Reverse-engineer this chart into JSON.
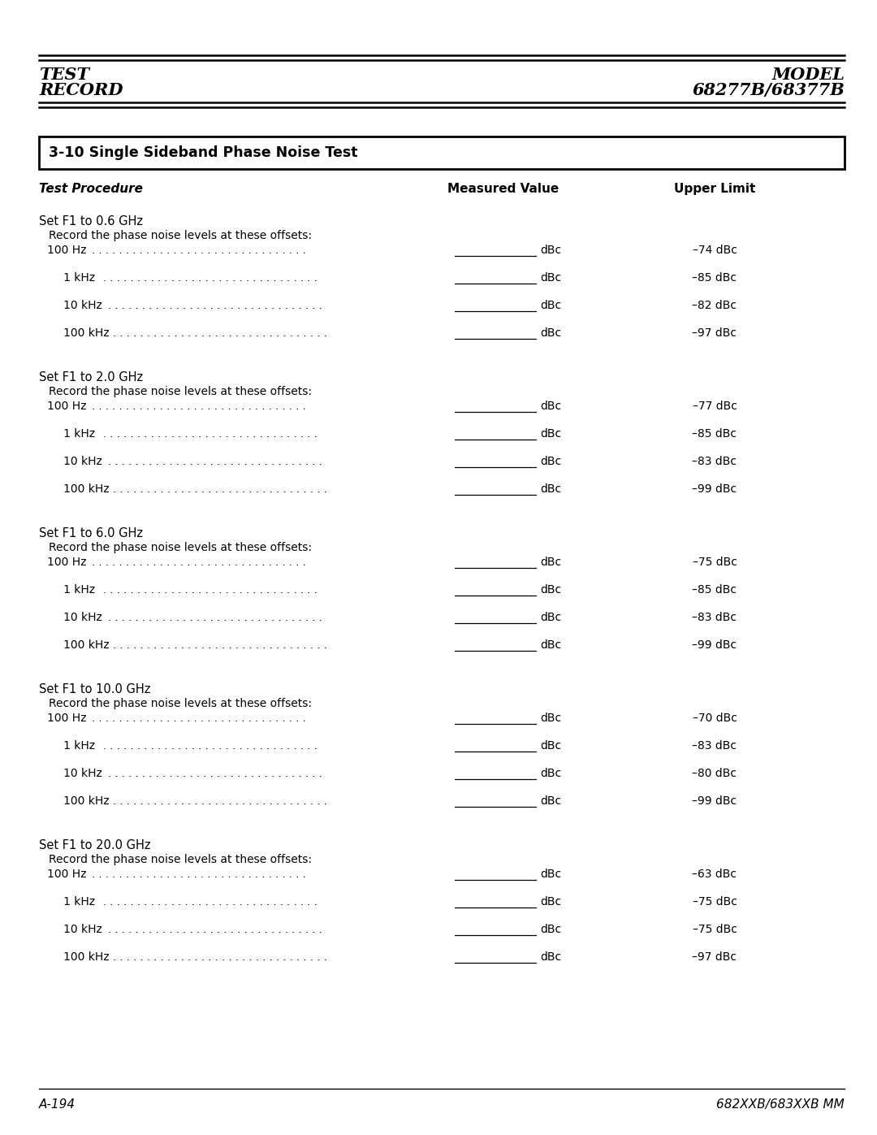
{
  "page_title_left": [
    "TEST",
    "RECORD"
  ],
  "page_title_right": [
    "MODEL",
    "68277B/68377B"
  ],
  "section_title": "3-10 Single Sideband Phase Noise Test",
  "col_headers": [
    "Test Procedure",
    "Measured Value",
    "Upper Limit"
  ],
  "footer_left": "A-194",
  "footer_right": "682XXB/683XXB MM",
  "groups": [
    {
      "set_line": "Set F1 to 0.6 GHz",
      "record_line": "Record the phase noise levels at these offsets:",
      "rows": [
        {
          "label": "100 Hz",
          "indent": 1,
          "upper_limit": "–74 dBc"
        },
        {
          "label": "1 kHz",
          "indent": 2,
          "upper_limit": "–85 dBc"
        },
        {
          "label": "10 kHz",
          "indent": 2,
          "upper_limit": "–82 dBc"
        },
        {
          "label": "100 kHz",
          "indent": 2,
          "upper_limit": "–97 dBc"
        }
      ]
    },
    {
      "set_line": "Set F1 to 2.0 GHz",
      "record_line": "Record the phase noise levels at these offsets:",
      "rows": [
        {
          "label": "100 Hz",
          "indent": 1,
          "upper_limit": "–77 dBc"
        },
        {
          "label": "1 kHz",
          "indent": 2,
          "upper_limit": "–85 dBc"
        },
        {
          "label": "10 kHz",
          "indent": 2,
          "upper_limit": "–83 dBc"
        },
        {
          "label": "100 kHz",
          "indent": 2,
          "upper_limit": "–99 dBc"
        }
      ]
    },
    {
      "set_line": "Set F1 to 6.0 GHz",
      "record_line": "Record the phase noise levels at these offsets:",
      "rows": [
        {
          "label": "100 Hz",
          "indent": 1,
          "upper_limit": "–75 dBc"
        },
        {
          "label": "1 kHz",
          "indent": 2,
          "upper_limit": "–85 dBc"
        },
        {
          "label": "10 kHz",
          "indent": 2,
          "upper_limit": "–83 dBc"
        },
        {
          "label": "100 kHz",
          "indent": 2,
          "upper_limit": "–99 dBc"
        }
      ]
    },
    {
      "set_line": "Set F1 to 10.0 GHz",
      "record_line": "Record the phase noise levels at these offsets:",
      "rows": [
        {
          "label": "100 Hz",
          "indent": 1,
          "upper_limit": "–70 dBc"
        },
        {
          "label": "1 kHz",
          "indent": 2,
          "upper_limit": "–83 dBc"
        },
        {
          "label": "10 kHz",
          "indent": 2,
          "upper_limit": "–80 dBc"
        },
        {
          "label": "100 kHz",
          "indent": 2,
          "upper_limit": "–99 dBc"
        }
      ]
    },
    {
      "set_line": "Set F1 to 20.0 GHz",
      "record_line": "Record the phase noise levels at these offsets:",
      "rows": [
        {
          "label": "100 Hz",
          "indent": 1,
          "upper_limit": "–63 dBc"
        },
        {
          "label": "1 kHz",
          "indent": 2,
          "upper_limit": "–75 dBc"
        },
        {
          "label": "10 kHz",
          "indent": 2,
          "upper_limit": "–75 dBc"
        },
        {
          "label": "100 kHz",
          "indent": 2,
          "upper_limit": "–97 dBc"
        }
      ]
    }
  ]
}
